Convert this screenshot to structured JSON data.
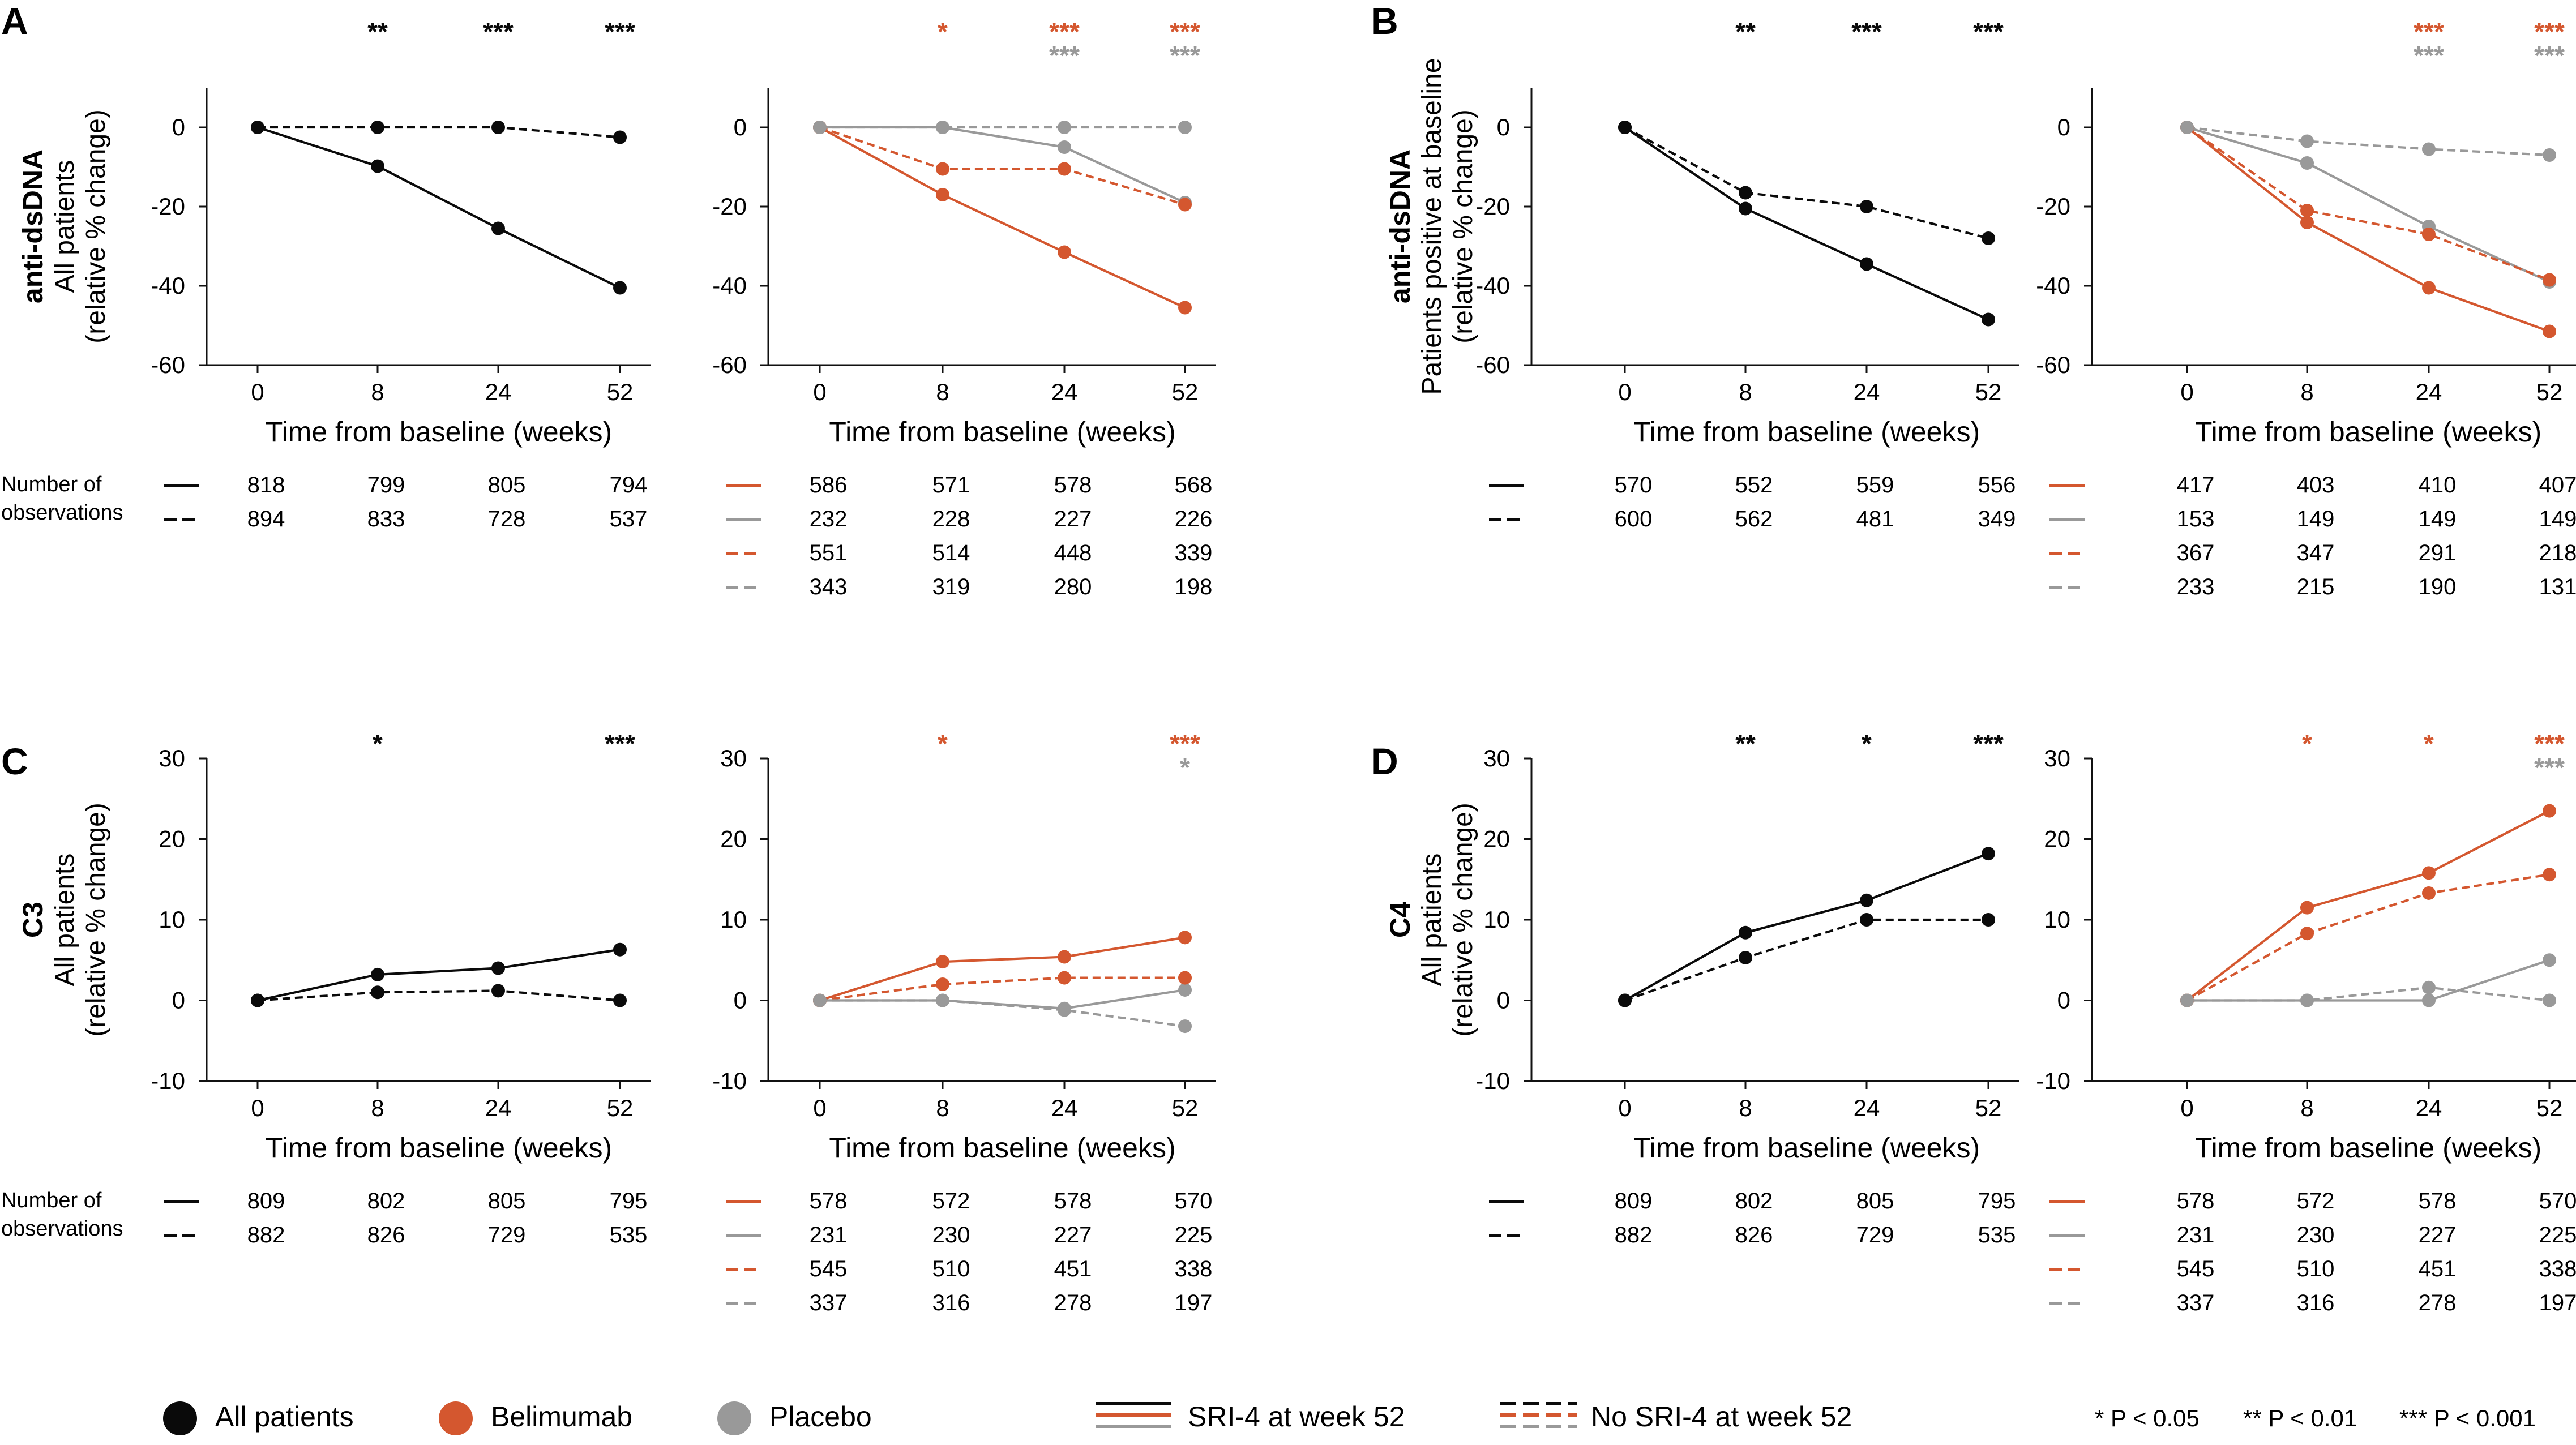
{
  "colors": {
    "all": "#0a0a0a",
    "belimumab": "#d4572f",
    "placebo": "#999999"
  },
  "common": {
    "xlabel": "Time from baseline (weeks)",
    "x_ticks": [
      "0",
      "8",
      "24",
      "52"
    ],
    "obs_label_1": "Number of",
    "obs_label_2": "observations"
  },
  "panels": [
    {
      "letter": "A",
      "title": "anti-dsDNA",
      "ylabel1": "All patients",
      "ylabel2": "(relative % change)",
      "ylim": [
        -60,
        10
      ],
      "yticks": [
        0,
        -20,
        -40,
        -60
      ],
      "show_obs_label": true,
      "left": {
        "sig": [
          [],
          [
            "**"
          ],
          [
            "***"
          ],
          [
            "***"
          ]
        ],
        "series": [
          {
            "name": "All patients SRI-4 at week 52",
            "group": "all",
            "dash": false,
            "values": [
              0,
              -9.8,
              -25.5,
              -40.5
            ]
          },
          {
            "name": "All patients No SRI-4 at week 52",
            "group": "all",
            "dash": true,
            "values": [
              0,
              0,
              0,
              -2.5
            ]
          }
        ],
        "obs": [
          [
            "818",
            "799",
            "805",
            "794"
          ],
          [
            "894",
            "833",
            "728",
            "537"
          ]
        ]
      },
      "right": {
        "sig": [
          [],
          [
            {
              "t": "*",
              "g": "belimumab"
            }
          ],
          [
            {
              "t": "***",
              "g": "belimumab"
            },
            {
              "t": "***",
              "g": "placebo"
            }
          ],
          [
            {
              "t": "***",
              "g": "belimumab"
            },
            {
              "t": "***",
              "g": "placebo"
            }
          ]
        ],
        "series": [
          {
            "name": "Belimumab SRI-4",
            "group": "belimumab",
            "dash": false,
            "values": [
              0,
              -17,
              -31.5,
              -45.5
            ]
          },
          {
            "name": "Placebo SRI-4",
            "group": "placebo",
            "dash": false,
            "values": [
              0,
              0,
              -5,
              -19
            ]
          },
          {
            "name": "Belimumab No SRI-4",
            "group": "belimumab",
            "dash": true,
            "values": [
              0,
              -10.5,
              -10.5,
              -19.5
            ]
          },
          {
            "name": "Placebo No SRI-4",
            "group": "placebo",
            "dash": true,
            "values": [
              0,
              0,
              0,
              0
            ]
          }
        ],
        "obs": [
          [
            "586",
            "571",
            "578",
            "568"
          ],
          [
            "232",
            "228",
            "227",
            "226"
          ],
          [
            "551",
            "514",
            "448",
            "339"
          ],
          [
            "343",
            "319",
            "280",
            "198"
          ]
        ]
      }
    },
    {
      "letter": "B",
      "title": "anti-dsDNA",
      "ylabel1": "Patients positive at baseline",
      "ylabel2": "(relative % change)",
      "ylim": [
        -60,
        10
      ],
      "yticks": [
        0,
        -20,
        -40,
        -60
      ],
      "show_obs_label": false,
      "left": {
        "sig": [
          [],
          [
            "**"
          ],
          [
            "***"
          ],
          [
            "***"
          ]
        ],
        "series": [
          {
            "name": "All patients SRI-4 at week 52",
            "group": "all",
            "dash": false,
            "values": [
              0,
              -20.5,
              -34.5,
              -48.5
            ]
          },
          {
            "name": "All patients No SRI-4 at week 52",
            "group": "all",
            "dash": true,
            "values": [
              0,
              -16.5,
              -20,
              -28
            ]
          }
        ],
        "obs": [
          [
            "570",
            "552",
            "559",
            "556"
          ],
          [
            "600",
            "562",
            "481",
            "349"
          ]
        ]
      },
      "right": {
        "sig": [
          [],
          [],
          [
            {
              "t": "***",
              "g": "belimumab"
            },
            {
              "t": "***",
              "g": "placebo"
            }
          ],
          [
            {
              "t": "***",
              "g": "belimumab"
            },
            {
              "t": "***",
              "g": "placebo"
            }
          ]
        ],
        "series": [
          {
            "name": "Belimumab SRI-4",
            "group": "belimumab",
            "dash": false,
            "values": [
              0,
              -24,
              -40.5,
              -51.5
            ]
          },
          {
            "name": "Placebo SRI-4",
            "group": "placebo",
            "dash": false,
            "values": [
              0,
              -9,
              -25,
              -39
            ]
          },
          {
            "name": "Belimumab No SRI-4",
            "group": "belimumab",
            "dash": true,
            "values": [
              0,
              -21,
              -27,
              -38.5
            ]
          },
          {
            "name": "Placebo No SRI-4",
            "group": "placebo",
            "dash": true,
            "values": [
              0,
              -3.5,
              -5.5,
              -7
            ]
          }
        ],
        "obs": [
          [
            "417",
            "403",
            "410",
            "407"
          ],
          [
            "153",
            "149",
            "149",
            "149"
          ],
          [
            "367",
            "347",
            "291",
            "218"
          ],
          [
            "233",
            "215",
            "190",
            "131"
          ]
        ]
      }
    },
    {
      "letter": "C",
      "title": "C3",
      "ylabel1": "All patients",
      "ylabel2": "(relative % change)",
      "ylim": [
        -10,
        30
      ],
      "yticks": [
        30,
        20,
        10,
        0,
        -10
      ],
      "show_obs_label": true,
      "left": {
        "sig": [
          [],
          [
            "*"
          ],
          [],
          [
            "***"
          ]
        ],
        "series": [
          {
            "name": "All patients SRI-4 at week 52",
            "group": "all",
            "dash": false,
            "values": [
              0,
              3.2,
              4,
              6.3
            ]
          },
          {
            "name": "All patients No SRI-4 at week 52",
            "group": "all",
            "dash": true,
            "values": [
              0,
              1,
              1.2,
              0
            ]
          }
        ],
        "obs": [
          [
            "809",
            "802",
            "805",
            "795"
          ],
          [
            "882",
            "826",
            "729",
            "535"
          ]
        ]
      },
      "right": {
        "sig": [
          [],
          [
            {
              "t": "*",
              "g": "belimumab"
            }
          ],
          [],
          [
            {
              "t": "***",
              "g": "belimumab"
            },
            {
              "t": "*",
              "g": "placebo"
            }
          ]
        ],
        "series": [
          {
            "name": "Belimumab SRI-4",
            "group": "belimumab",
            "dash": false,
            "values": [
              0,
              4.8,
              5.4,
              7.8
            ]
          },
          {
            "name": "Placebo SRI-4",
            "group": "placebo",
            "dash": false,
            "values": [
              0,
              0,
              -1,
              1.3
            ]
          },
          {
            "name": "Belimumab No SRI-4",
            "group": "belimumab",
            "dash": true,
            "values": [
              0,
              2,
              2.8,
              2.8
            ]
          },
          {
            "name": "Placebo No SRI-4",
            "group": "placebo",
            "dash": true,
            "values": [
              0,
              0,
              -1.2,
              -3.2
            ]
          }
        ],
        "obs": [
          [
            "578",
            "572",
            "578",
            "570"
          ],
          [
            "231",
            "230",
            "227",
            "225"
          ],
          [
            "545",
            "510",
            "451",
            "338"
          ],
          [
            "337",
            "316",
            "278",
            "197"
          ]
        ]
      }
    },
    {
      "letter": "D",
      "title": "C4",
      "ylabel1": "All patients",
      "ylabel2": "(relative % change)",
      "ylim": [
        -10,
        30
      ],
      "yticks": [
        30,
        20,
        10,
        0,
        -10
      ],
      "show_obs_label": false,
      "left": {
        "sig": [
          [],
          [
            "**"
          ],
          [
            "*"
          ],
          [
            "***"
          ]
        ],
        "series": [
          {
            "name": "All patients SRI-4 at week 52",
            "group": "all",
            "dash": false,
            "values": [
              0,
              8.4,
              12.4,
              18.2
            ]
          },
          {
            "name": "All patients No SRI-4 at week 52",
            "group": "all",
            "dash": true,
            "values": [
              0,
              5.3,
              10,
              10
            ]
          }
        ],
        "obs": [
          [
            "809",
            "802",
            "805",
            "795"
          ],
          [
            "882",
            "826",
            "729",
            "535"
          ]
        ]
      },
      "right": {
        "sig": [
          [],
          [
            {
              "t": "*",
              "g": "belimumab"
            }
          ],
          [
            {
              "t": "*",
              "g": "belimumab"
            }
          ],
          [
            {
              "t": "***",
              "g": "belimumab"
            },
            {
              "t": "***",
              "g": "placebo"
            }
          ]
        ],
        "series": [
          {
            "name": "Belimumab SRI-4",
            "group": "belimumab",
            "dash": false,
            "values": [
              0,
              11.5,
              15.8,
              23.5
            ]
          },
          {
            "name": "Placebo SRI-4",
            "group": "placebo",
            "dash": false,
            "values": [
              0,
              0,
              0,
              5
            ]
          },
          {
            "name": "Belimumab No SRI-4",
            "group": "belimumab",
            "dash": true,
            "values": [
              0,
              8.3,
              13.3,
              15.6
            ]
          },
          {
            "name": "Placebo No SRI-4",
            "group": "placebo",
            "dash": true,
            "values": [
              0,
              0,
              1.6,
              0
            ]
          }
        ],
        "obs": [
          [
            "578",
            "572",
            "578",
            "570"
          ],
          [
            "231",
            "230",
            "227",
            "225"
          ],
          [
            "545",
            "510",
            "451",
            "338"
          ],
          [
            "337",
            "316",
            "278",
            "197"
          ]
        ]
      }
    }
  ],
  "legend": {
    "all_patients": "All patients",
    "belimumab": "Belimumab",
    "placebo": "Placebo",
    "sri4": "SRI-4 at week 52",
    "no_sri4": "No SRI-4 at week 52",
    "p1": "* P < 0.05",
    "p2": "** P < 0.01",
    "p3": "*** P < 0.001"
  },
  "chart_data": [
    {
      "type": "line",
      "panel": "A-left",
      "title": "anti-dsDNA",
      "ylabel": "All patients (relative % change)",
      "xlabel": "Time from baseline (weeks)",
      "x": [
        0,
        8,
        24,
        52
      ],
      "ylim": [
        -60,
        10
      ],
      "series": [
        {
          "name": "All patients, SRI-4 at week 52",
          "values": [
            0,
            -9.8,
            -25.5,
            -40.5
          ]
        },
        {
          "name": "All patients, No SRI-4 at week 52",
          "values": [
            0,
            0,
            0,
            -2.5
          ]
        }
      ]
    },
    {
      "type": "line",
      "panel": "A-right",
      "x": [
        0,
        8,
        24,
        52
      ],
      "ylim": [
        -60,
        10
      ],
      "series": [
        {
          "name": "Belimumab, SRI-4",
          "values": [
            0,
            -17,
            -31.5,
            -45.5
          ]
        },
        {
          "name": "Placebo, SRI-4",
          "values": [
            0,
            0,
            -5,
            -19
          ]
        },
        {
          "name": "Belimumab, No SRI-4",
          "values": [
            0,
            -10.5,
            -10.5,
            -19.5
          ]
        },
        {
          "name": "Placebo, No SRI-4",
          "values": [
            0,
            0,
            0,
            0
          ]
        }
      ]
    },
    {
      "type": "line",
      "panel": "B-left",
      "title": "anti-dsDNA",
      "ylabel": "Patients positive at baseline (relative % change)",
      "x": [
        0,
        8,
        24,
        52
      ],
      "ylim": [
        -60,
        10
      ],
      "series": [
        {
          "name": "All patients, SRI-4 at week 52",
          "values": [
            0,
            -20.5,
            -34.5,
            -48.5
          ]
        },
        {
          "name": "All patients, No SRI-4 at week 52",
          "values": [
            0,
            -16.5,
            -20,
            -28
          ]
        }
      ]
    },
    {
      "type": "line",
      "panel": "B-right",
      "x": [
        0,
        8,
        24,
        52
      ],
      "ylim": [
        -60,
        10
      ],
      "series": [
        {
          "name": "Belimumab, SRI-4",
          "values": [
            0,
            -24,
            -40.5,
            -51.5
          ]
        },
        {
          "name": "Placebo, SRI-4",
          "values": [
            0,
            -9,
            -25,
            -39
          ]
        },
        {
          "name": "Belimumab, No SRI-4",
          "values": [
            0,
            -21,
            -27,
            -38.5
          ]
        },
        {
          "name": "Placebo, No SRI-4",
          "values": [
            0,
            -3.5,
            -5.5,
            -7
          ]
        }
      ]
    },
    {
      "type": "line",
      "panel": "C-left",
      "title": "C3",
      "ylabel": "All patients (relative % change)",
      "x": [
        0,
        8,
        24,
        52
      ],
      "ylim": [
        -10,
        30
      ],
      "series": [
        {
          "name": "All patients, SRI-4 at week 52",
          "values": [
            0,
            3.2,
            4,
            6.3
          ]
        },
        {
          "name": "All patients, No SRI-4 at week 52",
          "values": [
            0,
            1,
            1.2,
            0
          ]
        }
      ]
    },
    {
      "type": "line",
      "panel": "C-right",
      "x": [
        0,
        8,
        24,
        52
      ],
      "ylim": [
        -10,
        30
      ],
      "series": [
        {
          "name": "Belimumab, SRI-4",
          "values": [
            0,
            4.8,
            5.4,
            7.8
          ]
        },
        {
          "name": "Placebo, SRI-4",
          "values": [
            0,
            0,
            -1,
            1.3
          ]
        },
        {
          "name": "Belimumab, No SRI-4",
          "values": [
            0,
            2,
            2.8,
            2.8
          ]
        },
        {
          "name": "Placebo, No SRI-4",
          "values": [
            0,
            0,
            -1.2,
            -3.2
          ]
        }
      ]
    },
    {
      "type": "line",
      "panel": "D-left",
      "title": "C4",
      "ylabel": "All patients (relative % change)",
      "x": [
        0,
        8,
        24,
        52
      ],
      "ylim": [
        -10,
        30
      ],
      "series": [
        {
          "name": "All patients, SRI-4 at week 52",
          "values": [
            0,
            8.4,
            12.4,
            18.2
          ]
        },
        {
          "name": "All patients, No SRI-4 at week 52",
          "values": [
            0,
            5.3,
            10,
            10
          ]
        }
      ]
    },
    {
      "type": "line",
      "panel": "D-right",
      "x": [
        0,
        8,
        24,
        52
      ],
      "ylim": [
        -10,
        30
      ],
      "series": [
        {
          "name": "Belimumab, SRI-4",
          "values": [
            0,
            11.5,
            15.8,
            23.5
          ]
        },
        {
          "name": "Placebo, SRI-4",
          "values": [
            0,
            0,
            0,
            5
          ]
        },
        {
          "name": "Belimumab, No SRI-4",
          "values": [
            0,
            8.3,
            13.3,
            15.6
          ]
        },
        {
          "name": "Placebo, No SRI-4",
          "values": [
            0,
            0,
            1.6,
            0
          ]
        }
      ]
    }
  ]
}
